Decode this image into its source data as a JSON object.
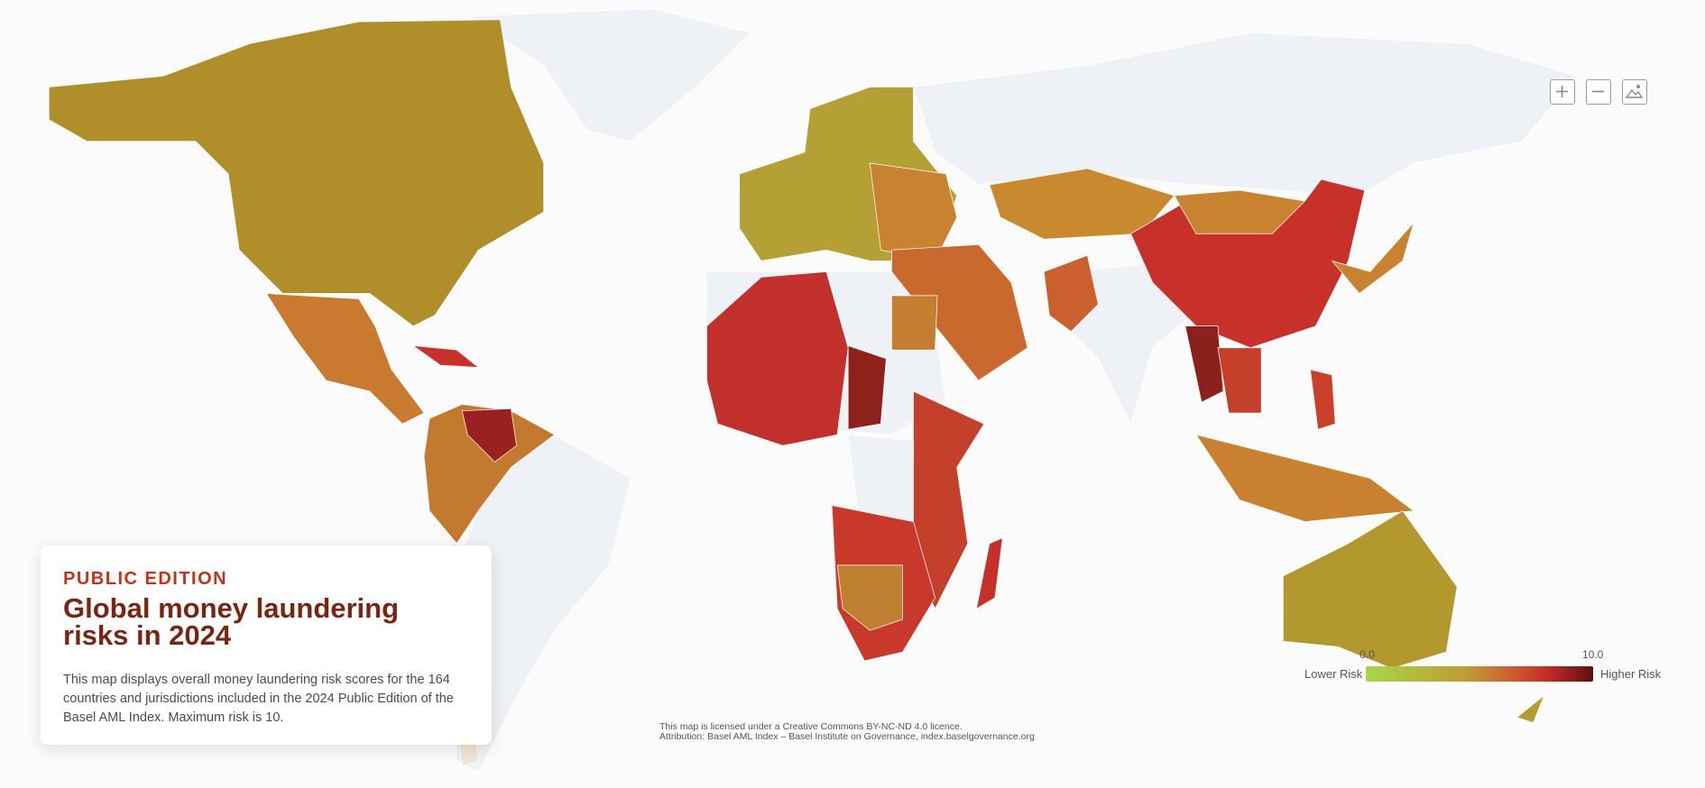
{
  "edition": "PUBLIC EDITION",
  "title": "Global money laundering risks in 2024",
  "description": "This map displays overall money laundering risk scores for the 164 countries and jurisdictions included in the 2024 Public Edition of the Basel AML Index. Maximum risk is 10.",
  "license": [
    "This map is licensed under a Creative Commons BY-NC-ND 4.0 licence.",
    "Attribution: Basel AML Index – Basel Institute on Governance, index.baselgovernance.org"
  ],
  "legend": {
    "min": "0.0",
    "max": "10.0",
    "low_label": "Lower Risk",
    "high_label": "Higher Risk"
  }
}
